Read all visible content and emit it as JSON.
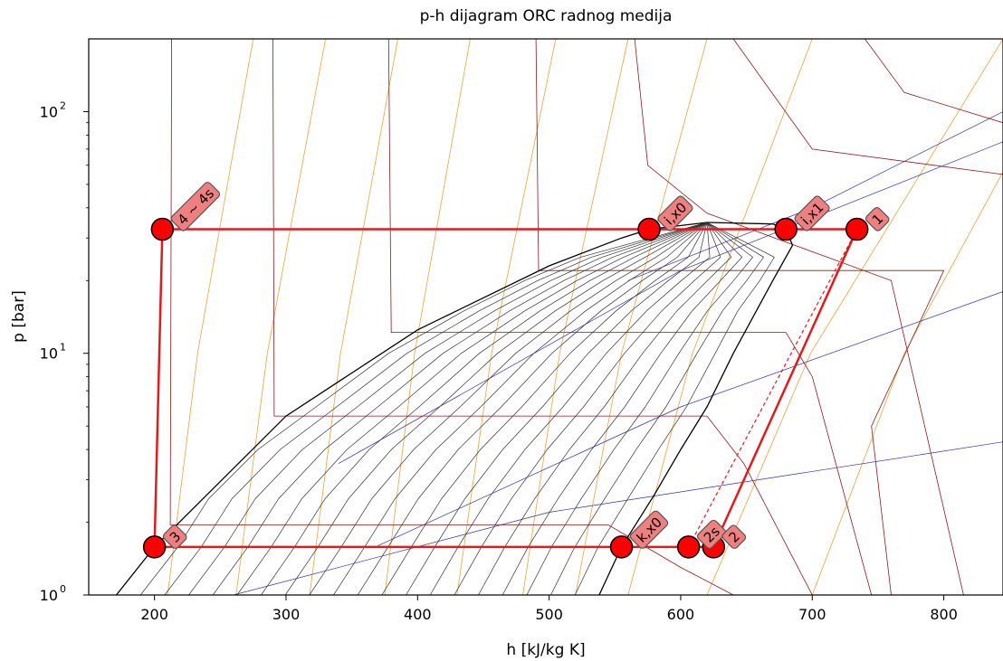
{
  "chart_data": {
    "type": "line",
    "title": "p-h dijagram ORC radnog medija",
    "xlabel": "h [kJ/kg K]",
    "ylabel": "p [bar]",
    "xlim": [
      150,
      845
    ],
    "ylim": [
      1,
      200
    ],
    "yscale": "log",
    "x_ticks": [
      200,
      300,
      400,
      500,
      600,
      700,
      800
    ],
    "y_ticks": [
      {
        "value": 1,
        "base": "10",
        "exp": "0"
      },
      {
        "value": 10,
        "base": "10",
        "exp": "1"
      },
      {
        "value": 100,
        "base": "10",
        "exp": "2"
      }
    ],
    "grid": false,
    "colors": {
      "cycle": "#e31a1c",
      "marker_fill": "#ff0000",
      "label_box": "#f08080",
      "saturation_dome": "#000000",
      "quality_lines": "#333333",
      "isotherms": "#8b1a1a",
      "isentropes": "#e8a33d",
      "isochores": "#3030b0"
    },
    "saturation_dome": {
      "liquid": [
        [
          171,
          1.0
        ],
        [
          200,
          1.58
        ],
        [
          300,
          5.5
        ],
        [
          400,
          12.5
        ],
        [
          500,
          23.0
        ],
        [
          555,
          30.0
        ],
        [
          576,
          32.6
        ],
        [
          620,
          34.8
        ]
      ],
      "vapor": [
        [
          620,
          34.8
        ],
        [
          670,
          34.3
        ],
        [
          680,
          32.6
        ],
        [
          685,
          28.0
        ],
        [
          670,
          20.0
        ],
        [
          640,
          10.0
        ],
        [
          620,
          6.0
        ],
        [
          600,
          4.0
        ],
        [
          580,
          2.6
        ],
        [
          555,
          1.58
        ],
        [
          538,
          1.0
        ]
      ]
    },
    "cycle": [
      {
        "label": "1",
        "h": 734,
        "p": 32.6
      },
      {
        "label": "2s",
        "h": 606,
        "p": 1.58
      },
      {
        "label": "2",
        "h": 625,
        "p": 1.58
      },
      {
        "label": "k,x0",
        "h": 555,
        "p": 1.58
      },
      {
        "label": "3",
        "h": 200,
        "p": 1.58
      },
      {
        "label": "4 ~ 4s",
        "h": 206,
        "p": 32.6
      },
      {
        "label": "i,x0",
        "h": 576,
        "p": 32.6
      },
      {
        "label": "i,x1",
        "h": 680,
        "p": 32.6
      }
    ],
    "cycle_path": [
      "3",
      "4 ~ 4s",
      "i,x0",
      "i,x1",
      "1",
      "2",
      "k,x0",
      "3"
    ],
    "isentropic_reference": [
      "1",
      "2s"
    ]
  }
}
